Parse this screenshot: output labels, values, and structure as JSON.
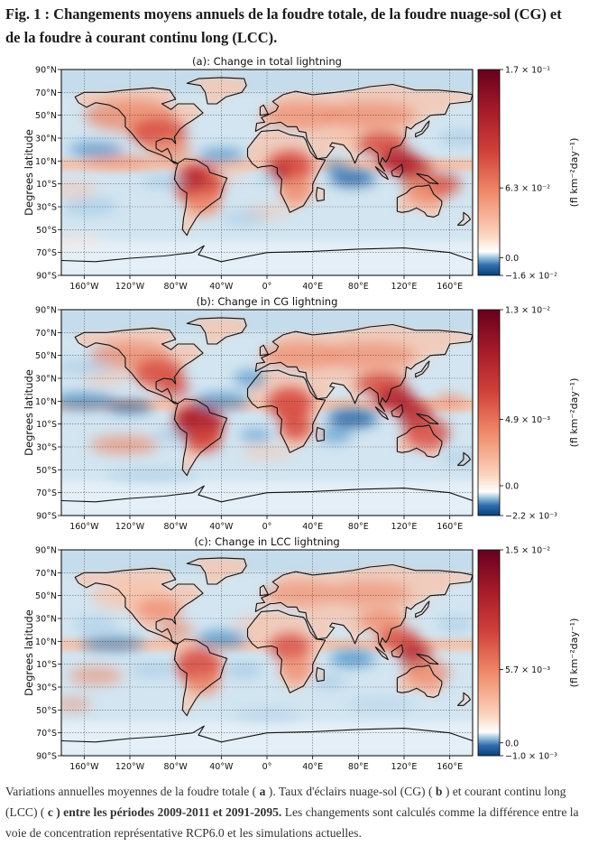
{
  "figure": {
    "title_line1": "Fig. 1 : Changements moyens annuels de la foudre totale, de la foudre nuage-sol (CG) et",
    "title_line2": "de la foudre à courant continu long (LCC)."
  },
  "caption": {
    "p1": "Variations annuelles moyennes de la foudre totale (",
    "b1": " a ",
    "p2": "). Taux d'éclairs nuage-sol (CG) (",
    "b2": " b ",
    "p3": ") et courant continu long (LCC) (",
    "b3": " c ) entre les périodes 2009-2011 et 2091-2095.",
    "p4": " Les changements sont calculés comme la différence entre la voie de concentration représentative RCP6.0 et les simulations actuelles."
  },
  "chart_data": [
    {
      "type": "heatmap",
      "title": "(a): Change in total lightning",
      "ylabel": "Degrees latitude",
      "xlabel": "",
      "x_ticks": [
        "160°W",
        "120°W",
        "80°W",
        "40°W",
        "0°",
        "40°E",
        "80°E",
        "120°E",
        "160°E"
      ],
      "y_ticks": [
        "90°N",
        "70°N",
        "50°N",
        "30°N",
        "10°N",
        "10°S",
        "30°S",
        "50°S",
        "70°S",
        "90°S"
      ],
      "colorbar": {
        "label": "(fl km⁻²day⁻¹)",
        "min": -0.016,
        "max": 0.17,
        "ticks": [
          {
            "value": 0.17,
            "label": "1.7 × 10⁻¹"
          },
          {
            "value": 0.063,
            "label": "6.3 × 10⁻²"
          },
          {
            "value": 0.0,
            "label": "0.0"
          },
          {
            "value": -0.016,
            "label": "−1.6 × 10⁻²"
          }
        ]
      }
    },
    {
      "type": "heatmap",
      "title": "(b): Change in CG lightning",
      "ylabel": "Degrees latitude",
      "xlabel": "",
      "x_ticks": [
        "160°W",
        "120°W",
        "80°W",
        "40°W",
        "0°",
        "40°E",
        "80°E",
        "120°E",
        "160°E"
      ],
      "y_ticks": [
        "90°N",
        "70°N",
        "50°N",
        "30°N",
        "10°N",
        "10°S",
        "30°S",
        "50°S",
        "70°S",
        "90°S"
      ],
      "colorbar": {
        "label": "(fl km⁻²day⁻¹)",
        "min": -0.0022,
        "max": 0.013,
        "ticks": [
          {
            "value": 0.013,
            "label": "1.3 × 10⁻²"
          },
          {
            "value": 0.0049,
            "label": "4.9 × 10⁻³"
          },
          {
            "value": 0.0,
            "label": "0.0"
          },
          {
            "value": -0.0022,
            "label": "−2.2 × 10⁻³"
          }
        ]
      }
    },
    {
      "type": "heatmap",
      "title": "(c): Change in LCC lightning",
      "ylabel": "Degrees latitude",
      "xlabel": "",
      "x_ticks": [
        "160°W",
        "120°W",
        "80°W",
        "40°W",
        "0°",
        "40°E",
        "80°E",
        "120°E",
        "160°E"
      ],
      "y_ticks": [
        "90°N",
        "70°N",
        "50°N",
        "30°N",
        "10°N",
        "10°S",
        "30°S",
        "50°S",
        "70°S",
        "90°S"
      ],
      "colorbar": {
        "label": "(fl km⁻²day⁻¹)",
        "min": -0.001,
        "max": 0.015,
        "ticks": [
          {
            "value": 0.015,
            "label": "1.5 × 10⁻²"
          },
          {
            "value": 0.0057,
            "label": "5.7 × 10⁻³"
          },
          {
            "value": 0.0,
            "label": "0.0"
          },
          {
            "value": -0.001,
            "label": "−1.0 × 10⁻³"
          }
        ]
      }
    }
  ]
}
